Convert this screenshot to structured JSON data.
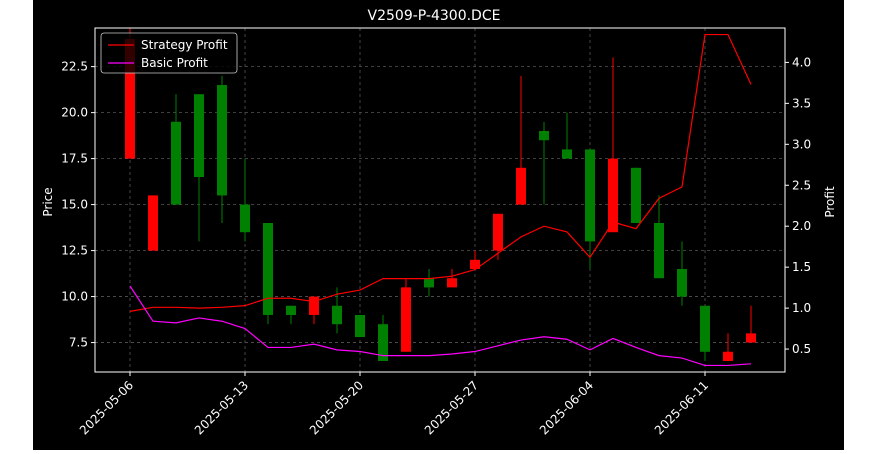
{
  "chart_data": {
    "type": "candlestick",
    "title": "V2509-P-4300.DCE",
    "ylabel_left": "Price",
    "ylabel_right": "Profit",
    "ylim_left": [
      5.9,
      24.6
    ],
    "ylim_right": [
      0.22,
      4.42
    ],
    "grid": true,
    "legend_placement": "top-left",
    "x_ticks": [
      "2025-05-06",
      "2025-05-13",
      "2025-05-20",
      "2025-05-27",
      "2025-06-04",
      "2025-06-11"
    ],
    "y_ticks_left": [
      7.5,
      10.0,
      12.5,
      15.0,
      17.5,
      20.0,
      22.5
    ],
    "y_ticks_right": [
      0.5,
      1.0,
      1.5,
      2.0,
      2.5,
      3.0,
      3.5,
      4.0
    ],
    "candles": [
      {
        "date": "2025-05-06",
        "open": 24.0,
        "high": 24.6,
        "low": 17.5,
        "close": 17.5
      },
      {
        "date": "2025-05-07",
        "open": 15.5,
        "high": 15.5,
        "low": 12.5,
        "close": 12.5
      },
      {
        "date": "2025-05-08",
        "open": 15.0,
        "high": 21.0,
        "low": 15.0,
        "close": 19.5
      },
      {
        "date": "2025-05-09",
        "open": 16.5,
        "high": 21.0,
        "low": 13.0,
        "close": 21.0
      },
      {
        "date": "2025-05-12",
        "open": 15.5,
        "high": 22.0,
        "low": 14.0,
        "close": 21.5
      },
      {
        "date": "2025-05-13",
        "open": 13.5,
        "high": 17.5,
        "low": 13.0,
        "close": 15.0
      },
      {
        "date": "2025-05-14",
        "open": 9.0,
        "high": 14.0,
        "low": 8.5,
        "close": 14.0
      },
      {
        "date": "2025-05-15",
        "open": 9.0,
        "high": 9.5,
        "low": 8.5,
        "close": 9.5
      },
      {
        "date": "2025-05-16",
        "open": 10.0,
        "high": 10.0,
        "low": 8.5,
        "close": 9.0
      },
      {
        "date": "2025-05-19",
        "open": 8.5,
        "high": 10.5,
        "low": 8.0,
        "close": 9.5
      },
      {
        "date": "2025-05-20",
        "open": 7.8,
        "high": 9.0,
        "low": 7.8,
        "close": 9.0
      },
      {
        "date": "2025-05-21",
        "open": 6.5,
        "high": 9.0,
        "low": 6.5,
        "close": 8.5
      },
      {
        "date": "2025-05-22",
        "open": 10.5,
        "high": 11.0,
        "low": 7.0,
        "close": 7.0
      },
      {
        "date": "2025-05-23",
        "open": 10.5,
        "high": 11.5,
        "low": 10.0,
        "close": 11.0
      },
      {
        "date": "2025-05-26",
        "open": 11.0,
        "high": 11.5,
        "low": 10.5,
        "close": 10.5
      },
      {
        "date": "2025-05-27",
        "open": 12.0,
        "high": 12.5,
        "low": 11.5,
        "close": 11.5
      },
      {
        "date": "2025-05-28",
        "open": 14.5,
        "high": 14.5,
        "low": 12.0,
        "close": 12.5
      },
      {
        "date": "2025-05-29",
        "open": 17.0,
        "high": 22.0,
        "low": 15.0,
        "close": 15.0
      },
      {
        "date": "2025-05-30",
        "open": 18.5,
        "high": 19.5,
        "low": 15.0,
        "close": 19.0
      },
      {
        "date": "2025-06-03",
        "open": 17.5,
        "high": 20.0,
        "low": 17.5,
        "close": 18.0
      },
      {
        "date": "2025-06-04",
        "open": 13.0,
        "high": 18.0,
        "low": 11.5,
        "close": 18.0
      },
      {
        "date": "2025-06-05",
        "open": 17.5,
        "high": 23.0,
        "low": 13.5,
        "close": 13.5
      },
      {
        "date": "2025-06-06",
        "open": 14.0,
        "high": 17.0,
        "low": 14.0,
        "close": 17.0
      },
      {
        "date": "2025-06-09",
        "open": 11.0,
        "high": 15.5,
        "low": 11.0,
        "close": 14.0
      },
      {
        "date": "2025-06-10",
        "open": 10.0,
        "high": 13.0,
        "low": 9.5,
        "close": 11.5
      },
      {
        "date": "2025-06-11",
        "open": 7.0,
        "high": 9.5,
        "low": 6.5,
        "close": 9.5
      },
      {
        "date": "2025-06-12",
        "open": 7.0,
        "high": 8.0,
        "low": 6.5,
        "close": 6.5
      },
      {
        "date": "2025-06-13",
        "open": 8.0,
        "high": 9.5,
        "low": 7.5,
        "close": 7.5
      }
    ],
    "series": [
      {
        "name": "Strategy Profit",
        "color": "#ff0000",
        "values": [
          0.96,
          1.01,
          1.01,
          1.0,
          1.01,
          1.03,
          1.12,
          1.12,
          1.08,
          1.17,
          1.22,
          1.36,
          1.36,
          1.36,
          1.39,
          1.47,
          1.67,
          1.87,
          2.0,
          1.93,
          1.62,
          2.05,
          1.97,
          2.34,
          2.48,
          4.34,
          4.34,
          3.73
        ]
      },
      {
        "name": "Basic Profit",
        "color": "#ff00ff",
        "values": [
          1.27,
          0.84,
          0.82,
          0.88,
          0.84,
          0.75,
          0.52,
          0.52,
          0.56,
          0.49,
          0.47,
          0.42,
          0.42,
          0.42,
          0.44,
          0.47,
          0.54,
          0.61,
          0.65,
          0.62,
          0.49,
          0.63,
          0.52,
          0.42,
          0.39,
          0.3,
          0.3,
          0.32
        ]
      }
    ],
    "colors": {
      "up": "#008000",
      "down": "#ff0000",
      "background": "#000000",
      "axes": "#ffffff",
      "grid": "#555555"
    }
  }
}
